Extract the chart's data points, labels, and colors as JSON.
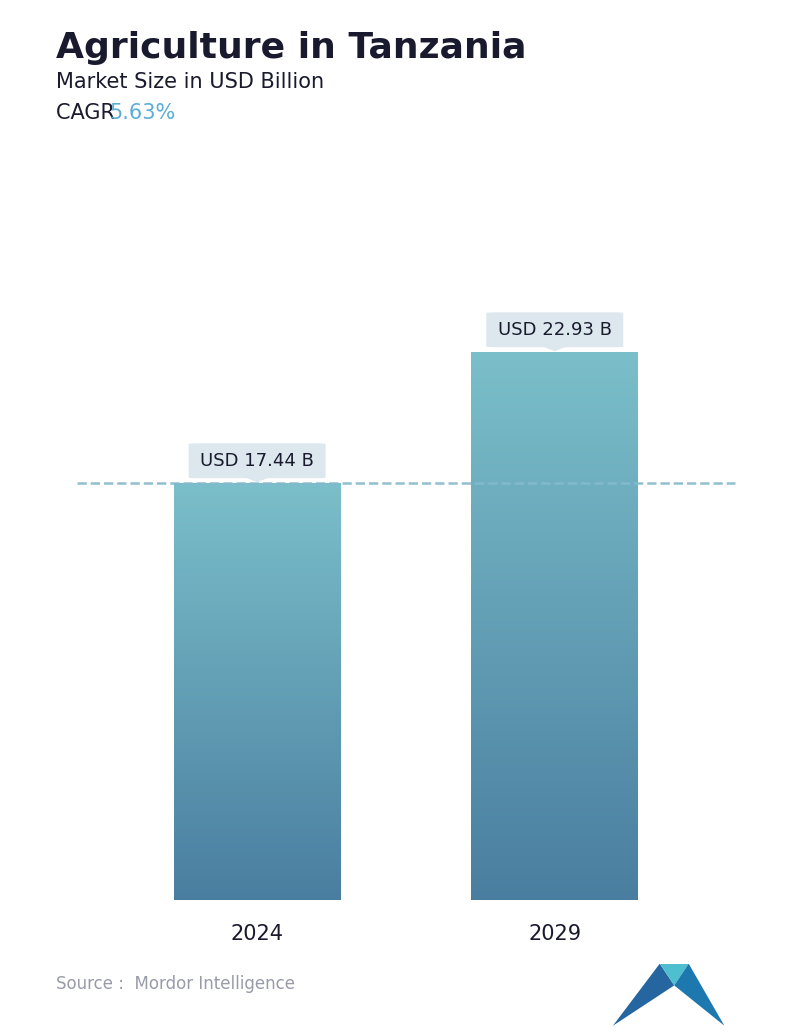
{
  "title": "Agriculture in Tanzania",
  "subtitle": "Market Size in USD Billion",
  "cagr_label": "CAGR ",
  "cagr_value": "5.63%",
  "cagr_color": "#5badd6",
  "categories": [
    "2024",
    "2029"
  ],
  "values": [
    17.44,
    22.93
  ],
  "annotations": [
    "USD 17.44 B",
    "USD 22.93 B"
  ],
  "bar_top_color": "#7bbfca",
  "bar_bottom_color": "#4a7ea0",
  "dashed_line_color": "#85b8ce",
  "dashed_line_value": 17.44,
  "source_text": "Source :  Mordor Intelligence",
  "background_color": "#ffffff",
  "title_fontsize": 26,
  "subtitle_fontsize": 15,
  "cagr_fontsize": 15,
  "annotation_fontsize": 13,
  "axis_tick_fontsize": 15,
  "source_fontsize": 12,
  "ylim_max": 26,
  "annotation_box_color": "#dde8ee",
  "annotation_text_color": "#1a1a2e"
}
